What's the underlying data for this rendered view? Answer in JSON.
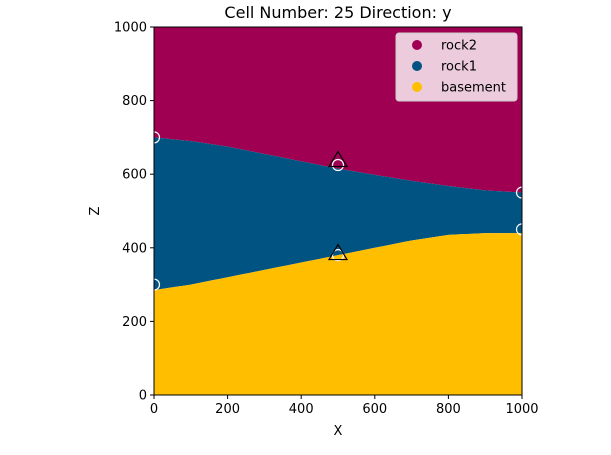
{
  "chart_data": {
    "type": "area",
    "title": "Cell Number: 25 Direction: y",
    "xlabel": "X",
    "ylabel": "Z",
    "xlim": [
      0,
      1000
    ],
    "ylim": [
      0,
      1000
    ],
    "xticks": [
      0,
      200,
      400,
      600,
      800,
      1000
    ],
    "yticks": [
      0,
      200,
      400,
      600,
      800,
      1000
    ],
    "grid": false,
    "legend_position": "top-right",
    "layers": [
      {
        "name": "rock2",
        "color": "#9f0052",
        "lower_boundary": {
          "x": [
            0,
            100,
            200,
            300,
            400,
            500,
            600,
            700,
            800,
            900,
            1000
          ],
          "z": [
            700,
            690,
            675,
            655,
            635,
            615,
            598,
            582,
            568,
            556,
            550
          ]
        }
      },
      {
        "name": "rock1",
        "color": "#015482",
        "lower_boundary": {
          "x": [
            0,
            100,
            200,
            300,
            400,
            500,
            600,
            700,
            800,
            900,
            1000
          ],
          "z": [
            285,
            300,
            320,
            340,
            360,
            380,
            400,
            420,
            435,
            440,
            440
          ]
        }
      },
      {
        "name": "basement",
        "color": "#ffbe00",
        "lower_boundary": null
      }
    ],
    "surface_points": [
      {
        "x": 0,
        "z": 700
      },
      {
        "x": 500,
        "z": 625
      },
      {
        "x": 1000,
        "z": 550
      },
      {
        "x": 0,
        "z": 300
      },
      {
        "x": 500,
        "z": 380
      },
      {
        "x": 1000,
        "z": 450
      }
    ],
    "orientations": [
      {
        "x": 500,
        "z": 640
      },
      {
        "x": 500,
        "z": 387
      }
    ]
  }
}
